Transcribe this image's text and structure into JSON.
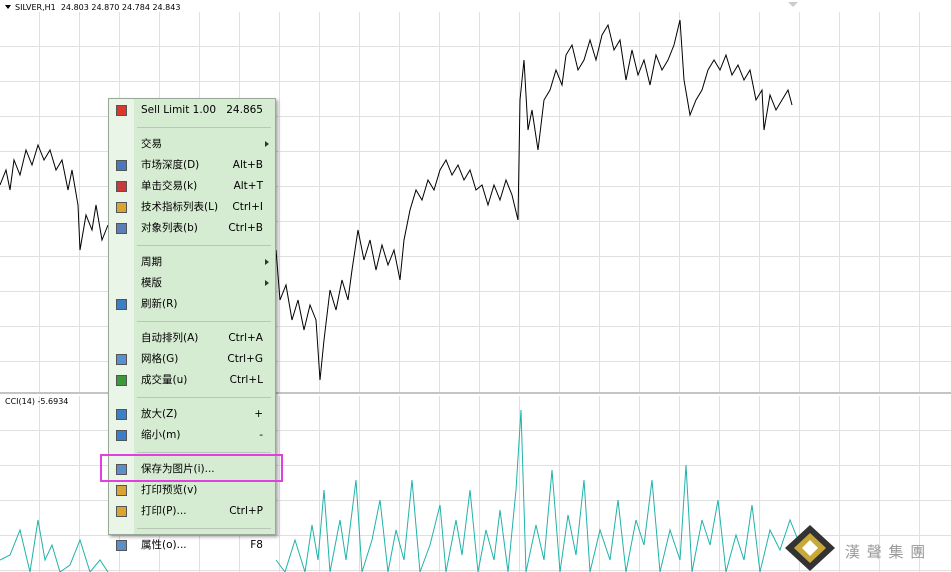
{
  "chart_header": {
    "symbol": "SILVER,H1",
    "ohlc": "24.803 24.870 24.784 24.843"
  },
  "indicator_label": "CCI(14) -5.6934",
  "context_menu": {
    "groups": [
      [
        {
          "label": "Sell Limit 1.00",
          "shortcut": "24.865",
          "icon": "#d9382a"
        }
      ],
      [
        {
          "label": "交易",
          "submenu": true
        },
        {
          "label": "市场深度(D)",
          "shortcut": "Alt+B",
          "icon": "#4a78b8"
        },
        {
          "label": "单击交易(k)",
          "shortcut": "Alt+T",
          "icon": "#c83a3a"
        },
        {
          "label": "技术指标列表(L)",
          "shortcut": "Ctrl+I",
          "icon": "#d9a431"
        },
        {
          "label": "对象列表(b)",
          "shortcut": "Ctrl+B",
          "icon": "#5b7fb5"
        }
      ],
      [
        {
          "label": "周期",
          "submenu": true
        },
        {
          "label": "模版",
          "submenu": true
        },
        {
          "label": "刷新(R)",
          "icon": "#3a7fc8"
        }
      ],
      [
        {
          "label": "自动排列(A)",
          "shortcut": "Ctrl+A"
        },
        {
          "label": "网格(G)",
          "shortcut": "Ctrl+G",
          "icon": "#5a8fd0"
        },
        {
          "label": "成交量(u)",
          "shortcut": "Ctrl+L",
          "icon": "#3a9a3a"
        }
      ],
      [
        {
          "label": "放大(Z)",
          "shortcut": "+",
          "icon": "#3a7fc8"
        },
        {
          "label": "缩小(m)",
          "shortcut": "-",
          "icon": "#3a7fc8"
        }
      ],
      [
        {
          "label": "保存为图片(i)...",
          "icon": "#5b8fc8",
          "highlighted": true
        },
        {
          "label": "打印预览(v)",
          "icon": "#d9a431"
        },
        {
          "label": "打印(P)...",
          "shortcut": "Ctrl+P",
          "icon": "#d9a431"
        }
      ],
      [
        {
          "label": "属性(o)...",
          "shortcut": "F8",
          "icon": "#5b8fc8"
        }
      ]
    ]
  },
  "watermark": "漢 聲 集 團"
}
